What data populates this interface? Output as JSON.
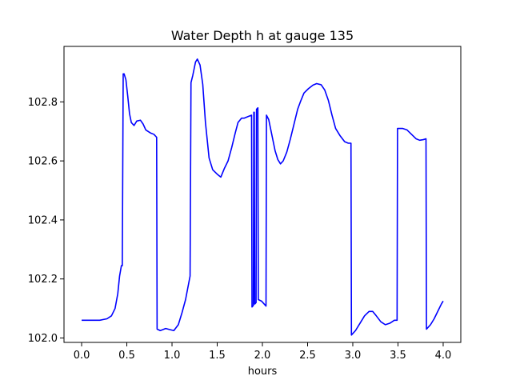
{
  "chart_data": {
    "type": "line",
    "title": "Water Depth h at gauge 135",
    "xlabel": "hours",
    "ylabel": "",
    "xlim": [
      -0.195,
      4.195
    ],
    "ylim": [
      101.985,
      102.988
    ],
    "x_ticks": [
      0.0,
      0.5,
      1.0,
      1.5,
      2.0,
      2.5,
      3.0,
      3.5,
      4.0
    ],
    "x_tick_labels": [
      "0.0",
      "0.5",
      "1.0",
      "1.5",
      "2.0",
      "2.5",
      "3.0",
      "3.5",
      "4.0"
    ],
    "y_ticks": [
      102.0,
      102.2,
      102.4,
      102.6,
      102.8
    ],
    "y_tick_labels": [
      "102.0",
      "102.2",
      "102.4",
      "102.6",
      "102.8"
    ],
    "grid": false,
    "line_color": "#0000ff",
    "series": [
      {
        "points": [
          [
            0.0,
            102.06
          ],
          [
            0.1,
            102.06
          ],
          [
            0.2,
            102.06
          ],
          [
            0.28,
            102.065
          ],
          [
            0.33,
            102.075
          ],
          [
            0.37,
            102.1
          ],
          [
            0.4,
            102.15
          ],
          [
            0.42,
            102.21
          ],
          [
            0.44,
            102.245
          ],
          [
            0.45,
            102.245
          ],
          [
            0.46,
            102.895
          ],
          [
            0.47,
            102.895
          ],
          [
            0.49,
            102.875
          ],
          [
            0.51,
            102.82
          ],
          [
            0.53,
            102.76
          ],
          [
            0.55,
            102.73
          ],
          [
            0.58,
            102.72
          ],
          [
            0.61,
            102.735
          ],
          [
            0.65,
            102.738
          ],
          [
            0.68,
            102.725
          ],
          [
            0.71,
            102.705
          ],
          [
            0.76,
            102.695
          ],
          [
            0.8,
            102.69
          ],
          [
            0.83,
            102.68
          ],
          [
            0.835,
            102.03
          ],
          [
            0.87,
            102.025
          ],
          [
            0.93,
            102.032
          ],
          [
            0.98,
            102.028
          ],
          [
            1.02,
            102.025
          ],
          [
            1.07,
            102.045
          ],
          [
            1.11,
            102.085
          ],
          [
            1.15,
            102.13
          ],
          [
            1.2,
            102.21
          ],
          [
            1.21,
            102.865
          ],
          [
            1.23,
            102.89
          ],
          [
            1.26,
            102.935
          ],
          [
            1.28,
            102.945
          ],
          [
            1.31,
            102.925
          ],
          [
            1.34,
            102.86
          ],
          [
            1.37,
            102.73
          ],
          [
            1.41,
            102.61
          ],
          [
            1.45,
            102.57
          ],
          [
            1.5,
            102.555
          ],
          [
            1.54,
            102.545
          ],
          [
            1.58,
            102.575
          ],
          [
            1.62,
            102.6
          ],
          [
            1.66,
            102.645
          ],
          [
            1.7,
            102.695
          ],
          [
            1.73,
            102.73
          ],
          [
            1.77,
            102.745
          ],
          [
            1.8,
            102.745
          ],
          [
            1.84,
            102.75
          ],
          [
            1.88,
            102.755
          ],
          [
            1.885,
            102.105
          ],
          [
            1.9,
            102.11
          ],
          [
            1.905,
            102.765
          ],
          [
            1.91,
            102.765
          ],
          [
            1.915,
            102.115
          ],
          [
            1.93,
            102.12
          ],
          [
            1.935,
            102.775
          ],
          [
            1.95,
            102.78
          ],
          [
            1.955,
            102.13
          ],
          [
            1.99,
            102.125
          ],
          [
            2.02,
            102.115
          ],
          [
            2.04,
            102.108
          ],
          [
            2.045,
            102.755
          ],
          [
            2.07,
            102.74
          ],
          [
            2.09,
            102.71
          ],
          [
            2.11,
            102.68
          ],
          [
            2.14,
            102.635
          ],
          [
            2.17,
            102.605
          ],
          [
            2.2,
            102.59
          ],
          [
            2.23,
            102.6
          ],
          [
            2.27,
            102.63
          ],
          [
            2.31,
            102.675
          ],
          [
            2.35,
            102.725
          ],
          [
            2.39,
            102.775
          ],
          [
            2.42,
            102.8
          ],
          [
            2.46,
            102.83
          ],
          [
            2.51,
            102.845
          ],
          [
            2.56,
            102.857
          ],
          [
            2.6,
            102.862
          ],
          [
            2.65,
            102.858
          ],
          [
            2.69,
            102.84
          ],
          [
            2.73,
            102.805
          ],
          [
            2.77,
            102.755
          ],
          [
            2.81,
            102.71
          ],
          [
            2.86,
            102.685
          ],
          [
            2.91,
            102.665
          ],
          [
            2.95,
            102.66
          ],
          [
            2.98,
            102.66
          ],
          [
            2.985,
            102.01
          ],
          [
            3.03,
            102.025
          ],
          [
            3.08,
            102.05
          ],
          [
            3.13,
            102.075
          ],
          [
            3.18,
            102.09
          ],
          [
            3.22,
            102.09
          ],
          [
            3.26,
            102.075
          ],
          [
            3.31,
            102.055
          ],
          [
            3.36,
            102.045
          ],
          [
            3.41,
            102.05
          ],
          [
            3.46,
            102.06
          ],
          [
            3.49,
            102.06
          ],
          [
            3.495,
            102.71
          ],
          [
            3.55,
            102.71
          ],
          [
            3.6,
            102.705
          ],
          [
            3.65,
            102.69
          ],
          [
            3.7,
            102.675
          ],
          [
            3.74,
            102.67
          ],
          [
            3.78,
            102.672
          ],
          [
            3.81,
            102.675
          ],
          [
            3.815,
            102.03
          ],
          [
            3.86,
            102.045
          ],
          [
            3.9,
            102.065
          ],
          [
            3.94,
            102.09
          ],
          [
            3.98,
            102.115
          ],
          [
            4.0,
            102.125
          ]
        ]
      }
    ]
  }
}
